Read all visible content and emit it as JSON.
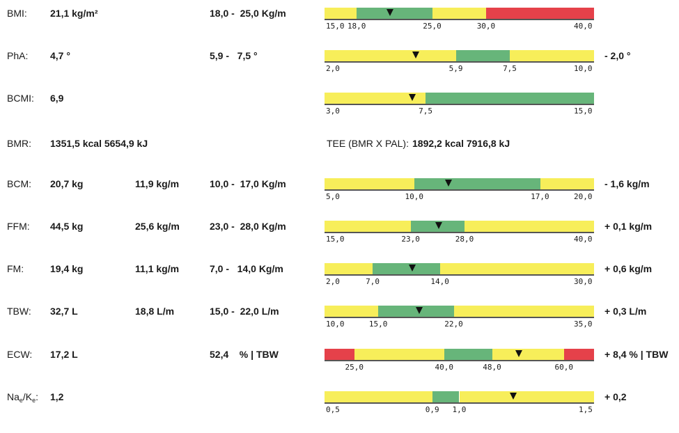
{
  "rows": [
    {
      "label": "BMI:",
      "v1": "21,1 kg/m²",
      "v2": "",
      "range": "18,0 -  25,0 Kg/m",
      "dev": "",
      "scale": [
        15,
        40
      ],
      "segments": [
        [
          15,
          18,
          "yellow"
        ],
        [
          18,
          25,
          "green"
        ],
        [
          25,
          30,
          "yellow"
        ],
        [
          30,
          40,
          "red"
        ]
      ],
      "marker": 21.1,
      "ticks": [
        [
          "15,0",
          15
        ],
        [
          "18,0",
          18
        ],
        [
          "25,0",
          25
        ],
        [
          "30,0",
          30
        ],
        [
          "40,0",
          40
        ]
      ]
    },
    {
      "label": "PhA:",
      "v1": "4,7 °",
      "v2": "",
      "range": "5,9 -   7,5 °",
      "dev": "- 2,0 °",
      "scale": [
        2,
        10
      ],
      "segments": [
        [
          2,
          5.9,
          "yellow"
        ],
        [
          5.9,
          7.5,
          "green"
        ],
        [
          7.5,
          10,
          "yellow"
        ]
      ],
      "marker": 4.7,
      "ticks": [
        [
          "2,0",
          2
        ],
        [
          "5,9",
          5.9
        ],
        [
          "7,5",
          7.5
        ],
        [
          "10,0",
          10
        ]
      ]
    },
    {
      "label": "BCMI:",
      "v1": "6,9",
      "v2": "",
      "range": "",
      "dev": "",
      "scale": [
        3,
        15
      ],
      "segments": [
        [
          3,
          7.5,
          "yellow"
        ],
        [
          7.5,
          15,
          "green"
        ]
      ],
      "marker": 6.9,
      "ticks": [
        [
          "3,0",
          3
        ],
        [
          "7,5",
          7.5
        ],
        [
          "15,0",
          15
        ]
      ]
    },
    {
      "label": "BMR:",
      "v1": "1351,5 kcal 5654,9 kJ",
      "tee_label": "TEE (BMR X PAL):",
      "tee_value": "1892,2 kcal 7916,8 kJ"
    },
    {
      "label": "BCM:",
      "v1": "20,7 kg",
      "v2": "11,9 kg/m",
      "range": "10,0 -  17,0 Kg/m",
      "dev": "- 1,6 kg/m",
      "scale": [
        5,
        20
      ],
      "segments": [
        [
          5,
          10,
          "yellow"
        ],
        [
          10,
          17,
          "green"
        ],
        [
          17,
          20,
          "yellow"
        ]
      ],
      "marker": 11.9,
      "ticks": [
        [
          "5,0",
          5
        ],
        [
          "10,0",
          10
        ],
        [
          "17,0",
          17
        ],
        [
          "20,0",
          20
        ]
      ]
    },
    {
      "label": "FFM:",
      "v1": "44,5 kg",
      "v2": "25,6 kg/m",
      "range": "23,0 -  28,0 Kg/m",
      "dev": "+ 0,1 kg/m",
      "scale": [
        15,
        40
      ],
      "segments": [
        [
          15,
          23,
          "yellow"
        ],
        [
          23,
          28,
          "green"
        ],
        [
          28,
          40,
          "yellow"
        ]
      ],
      "marker": 25.6,
      "ticks": [
        [
          "15,0",
          15
        ],
        [
          "23,0",
          23
        ],
        [
          "28,0",
          28
        ],
        [
          "40,0",
          40
        ]
      ]
    },
    {
      "label": "FM:",
      "v1": "19,4 kg",
      "v2": "11,1 kg/m",
      "range": "7,0 -   14,0 Kg/m",
      "dev": "+ 0,6 kg/m",
      "scale": [
        2,
        30
      ],
      "segments": [
        [
          2,
          7,
          "yellow"
        ],
        [
          7,
          14,
          "green"
        ],
        [
          14,
          30,
          "yellow"
        ]
      ],
      "marker": 11.1,
      "ticks": [
        [
          "2,0",
          2
        ],
        [
          "7,0",
          7
        ],
        [
          "14,0",
          14
        ],
        [
          "30,0",
          30
        ]
      ]
    },
    {
      "label": "TBW:",
      "v1": "32,7 L",
      "v2": "18,8 L/m",
      "range": "15,0 -  22,0 L/m",
      "dev": "+ 0,3 L/m",
      "scale": [
        10,
        35
      ],
      "segments": [
        [
          10,
          15,
          "yellow"
        ],
        [
          15,
          22,
          "green"
        ],
        [
          22,
          35,
          "yellow"
        ]
      ],
      "marker": 18.8,
      "ticks": [
        [
          "10,0",
          10
        ],
        [
          "15,0",
          15
        ],
        [
          "22,0",
          22
        ],
        [
          "35,0",
          35
        ]
      ]
    },
    {
      "label": "ECW:",
      "v1": "17,2 L",
      "v2": "",
      "range": "52,4    % | TBW",
      "dev": "+ 8,4 % | TBW",
      "scale": [
        20,
        65
      ],
      "segments": [
        [
          20,
          25,
          "red"
        ],
        [
          25,
          40,
          "yellow"
        ],
        [
          40,
          48,
          "green"
        ],
        [
          48,
          60,
          "yellow"
        ],
        [
          60,
          65,
          "red"
        ]
      ],
      "marker": 52.4,
      "ticks": [
        [
          "25,0",
          25
        ],
        [
          "40,0",
          40
        ],
        [
          "48,0",
          48
        ],
        [
          "60,0",
          60
        ]
      ]
    },
    {
      "label_main": "Na",
      "label_sub1": "e",
      "label_mid": "/K",
      "label_sub2": "e",
      "label_end": ":",
      "v1": "1,2",
      "v2": "",
      "range": "",
      "dev": "+ 0,2",
      "scale": [
        0.5,
        1.5
      ],
      "segments": [
        [
          0.5,
          0.9,
          "yellow"
        ],
        [
          0.9,
          1.0,
          "green"
        ],
        [
          1.0,
          1.5,
          "yellow"
        ]
      ],
      "marker": 1.2,
      "ticks": [
        [
          "0,5",
          0.5
        ],
        [
          "0,9",
          0.9
        ],
        [
          "1,0",
          1.0
        ],
        [
          "1,5",
          1.5
        ]
      ]
    }
  ]
}
